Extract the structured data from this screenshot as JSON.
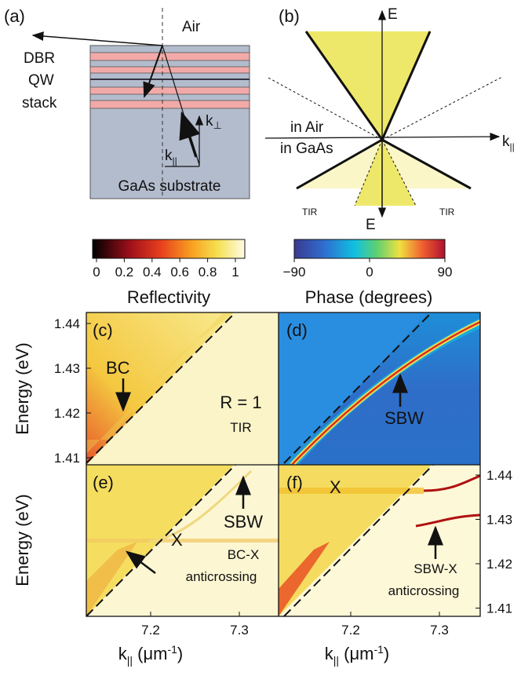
{
  "panel_a": {
    "label": "(a)",
    "air": "Air",
    "dbr": "DBR",
    "qw": "QW",
    "stack": "stack",
    "k_perp": {
      "main": "k",
      "sub": "⊥"
    },
    "k_par": {
      "main": "k",
      "sub": "||"
    },
    "substrate": "GaAs substrate"
  },
  "panel_b": {
    "label": "(b)",
    "e_top": "E",
    "e_bottom": "E",
    "k_par": {
      "main": "k",
      "sub": "||"
    },
    "in_air": "in Air",
    "in_gaas": "in GaAs",
    "tir_left": "TIR",
    "tir_right": "TIR"
  },
  "colorbar_reflectivity": {
    "ticks": [
      "0",
      "0.2",
      "0.4",
      "0.6",
      "0.8",
      "1"
    ],
    "label": "Reflectivity"
  },
  "colorbar_phase": {
    "ticks": [
      "−90",
      "0",
      "90"
    ],
    "label": "Phase (degrees)"
  },
  "panel_c": {
    "label": "(c)",
    "bc": "BC",
    "r": "R = 1",
    "tir": "TIR"
  },
  "panel_d": {
    "label": "(d)",
    "sbw": "SBW"
  },
  "panel_e": {
    "label": "(e)",
    "sbw": "SBW",
    "x": "X",
    "bcx": "BC-X",
    "anti": "anticrossing"
  },
  "panel_f": {
    "label": "(f)",
    "x": "X",
    "sbwx": "SBW-X",
    "anti": "anticrossing"
  },
  "axes": {
    "y_label": "Energy (eV)",
    "y_ticks_top": [
      "1.44",
      "1.43",
      "1.42",
      "1.41"
    ],
    "y_ticks_bottom": [
      "1.44",
      "1.43",
      "1.42",
      "1.41"
    ],
    "x_ticks_left": [
      "7.2",
      "7.3"
    ],
    "x_ticks_right": [
      "7.2",
      "7.3"
    ],
    "x_label": {
      "main": "k",
      "sub": "||",
      "unit": " (μm",
      "sup": "-1",
      "end": ")"
    }
  }
}
